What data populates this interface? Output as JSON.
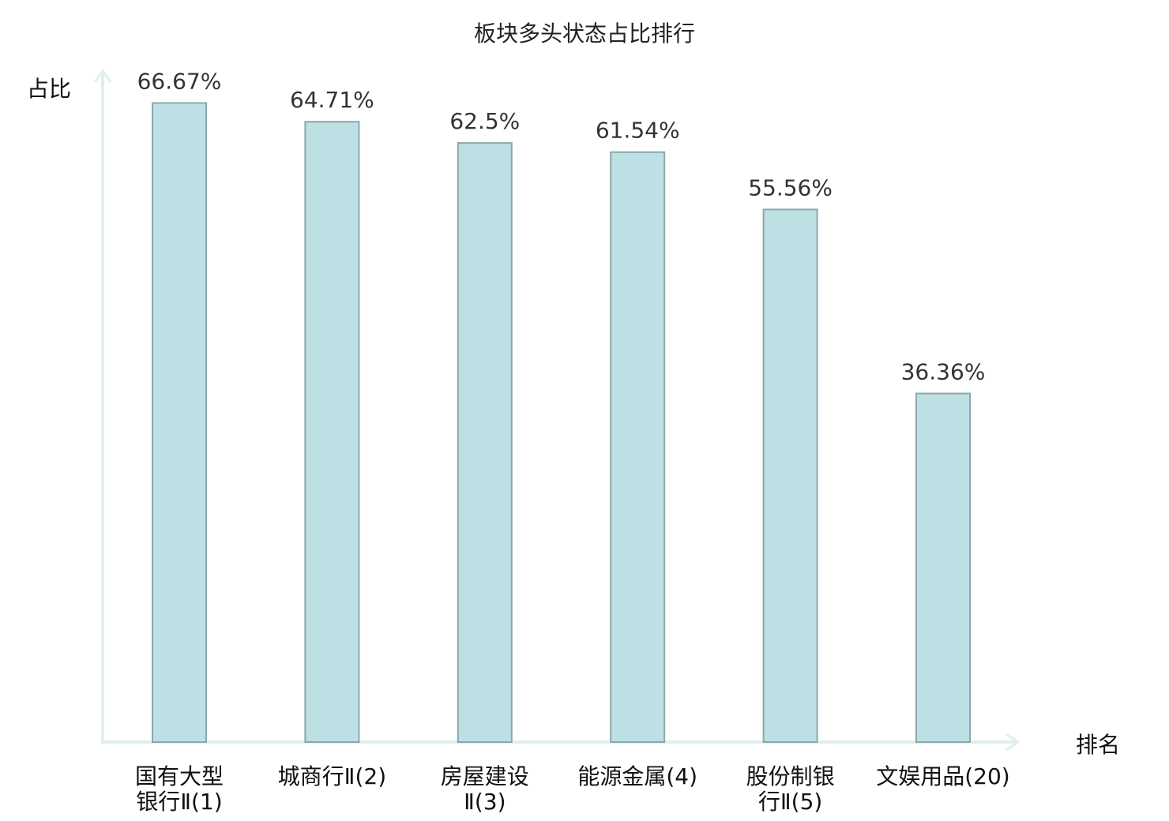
{
  "chart_data": {
    "type": "bar",
    "title": "板块多头状态占比排行",
    "ylabel": "占比",
    "xlabel": "排名",
    "ylim": [
      0,
      70
    ],
    "grid": false,
    "categories": [
      {
        "lines": [
          "国有大型",
          "银行Ⅱ(1)"
        ],
        "highlight": false
      },
      {
        "lines": [
          "城商行Ⅱ(2)"
        ],
        "highlight": false
      },
      {
        "lines": [
          "房屋建设",
          "Ⅱ(3)"
        ],
        "highlight": false
      },
      {
        "lines": [
          "能源金属(4)"
        ],
        "highlight": false
      },
      {
        "lines": [
          "股份制银",
          "行Ⅱ(5)"
        ],
        "highlight": false
      },
      {
        "lines": [
          "文娱用品(20)"
        ],
        "highlight": true
      }
    ],
    "values": [
      66.67,
      64.71,
      62.5,
      61.54,
      55.56,
      36.36
    ],
    "value_labels": [
      "66.67%",
      "64.71%",
      "62.5%",
      "61.54%",
      "55.56%",
      "36.36%"
    ],
    "colors": {
      "bar_fill": "#bce0e3",
      "bar_stroke": "#8aa8aa",
      "axis": "#dff0ee",
      "highlight_text": "#e00000",
      "normal_text": "#111111"
    }
  }
}
